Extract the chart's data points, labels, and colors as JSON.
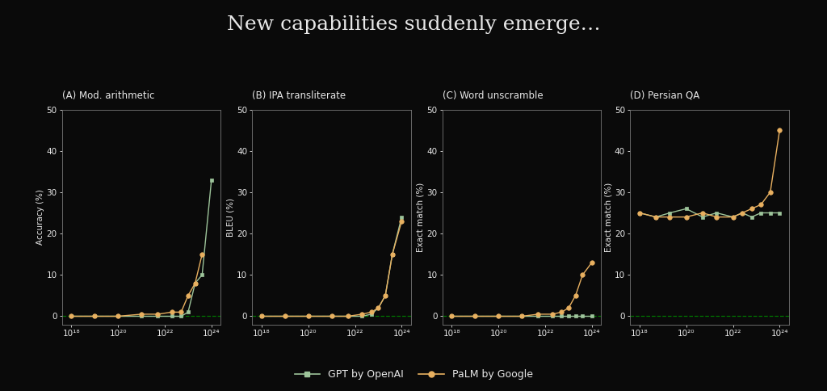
{
  "title": "New capabilities suddenly emerge…",
  "background_color": "#0a0a0a",
  "text_color": "#e8e8e8",
  "gpt_color": "#9dc49a",
  "palm_color": "#e8b060",
  "dashed_color": "#007700",
  "subplots": [
    {
      "label": "(A) Mod. arithmetic",
      "ylabel": "Accuracy (%)",
      "ylim": [
        -2,
        50
      ],
      "yticks": [
        0,
        10,
        20,
        30,
        40,
        50
      ],
      "gpt_x": [
        18,
        19,
        20,
        21,
        21.7,
        22.3,
        22.7,
        23.0,
        23.3,
        23.6,
        24.0
      ],
      "gpt_y": [
        0,
        0,
        0,
        0,
        0,
        0,
        0,
        1,
        8,
        10,
        33
      ],
      "palm_x": [
        18,
        19,
        20,
        21,
        21.7,
        22.3,
        22.7,
        23.0,
        23.3,
        23.6
      ],
      "palm_y": [
        0,
        0,
        0,
        0.5,
        0.5,
        1,
        1,
        5,
        8,
        15
      ]
    },
    {
      "label": "(B) IPA transliterate",
      "ylabel": "BLEU (%)",
      "ylim": [
        -2,
        50
      ],
      "yticks": [
        0,
        10,
        20,
        30,
        40,
        50
      ],
      "gpt_x": [
        18,
        19,
        20,
        21,
        21.7,
        22.3,
        22.7,
        23.0,
        23.3,
        23.6,
        24.0
      ],
      "gpt_y": [
        0,
        0,
        0,
        0,
        0,
        0,
        0.5,
        2,
        5,
        15,
        24
      ],
      "palm_x": [
        18,
        19,
        20,
        21,
        21.7,
        22.3,
        22.7,
        23.0,
        23.3,
        23.6,
        24.0
      ],
      "palm_y": [
        0,
        0,
        0,
        0,
        0,
        0.5,
        1,
        2,
        5,
        15,
        23
      ]
    },
    {
      "label": "(C) Word unscramble",
      "ylabel": "Exact match (%)",
      "ylim": [
        -2,
        50
      ],
      "yticks": [
        0,
        10,
        20,
        30,
        40,
        50
      ],
      "gpt_x": [
        18,
        19,
        20,
        21,
        21.7,
        22.3,
        22.7,
        23.0,
        23.3,
        23.6,
        24.0
      ],
      "gpt_y": [
        0,
        0,
        0,
        0,
        0,
        0,
        0,
        0,
        0,
        0,
        0
      ],
      "palm_x": [
        18,
        19,
        20,
        21,
        21.7,
        22.3,
        22.7,
        23.0,
        23.3,
        23.6,
        24.0
      ],
      "palm_y": [
        0,
        0,
        0,
        0,
        0.5,
        0.5,
        1,
        2,
        5,
        10,
        13
      ]
    },
    {
      "label": "(D) Persian QA",
      "ylabel": "Exact match (%)",
      "ylim": [
        -2,
        50
      ],
      "yticks": [
        0,
        10,
        20,
        30,
        40,
        50
      ],
      "gpt_x": [
        18,
        18.7,
        19.3,
        20.0,
        20.7,
        21.3,
        22.0,
        22.4,
        22.8,
        23.2,
        23.6,
        24.0
      ],
      "gpt_y": [
        25,
        24,
        25,
        26,
        24,
        25,
        24,
        25,
        24,
        25,
        25,
        25
      ],
      "palm_x": [
        18,
        18.7,
        19.3,
        20.0,
        20.7,
        21.3,
        22.0,
        22.4,
        22.8,
        23.2,
        23.6,
        24.0
      ],
      "palm_y": [
        25,
        24,
        24,
        24,
        25,
        24,
        24,
        25,
        26,
        27,
        30,
        45
      ]
    }
  ],
  "legend": {
    "gpt_label": "GPT by OpenAI",
    "palm_label": "PaLM by Google"
  },
  "xticks": [
    18,
    20,
    22,
    24
  ],
  "xtick_labels": [
    "10¹⁸",
    "10²⁰",
    "10²²",
    "10²⁴"
  ]
}
